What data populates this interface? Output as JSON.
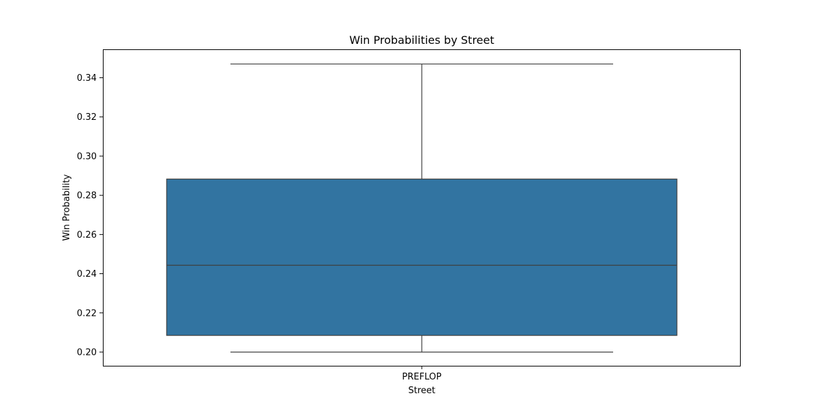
{
  "chart_data": {
    "type": "box",
    "title": "Win Probabilities by Street",
    "xlabel": "Street",
    "ylabel": "Win Probability",
    "categories": [
      "PREFLOP"
    ],
    "boxes": [
      {
        "category": "PREFLOP",
        "whisker_low": 0.2,
        "q1": 0.2085,
        "median": 0.2443,
        "q3": 0.2883,
        "whisker_high": 0.347
      }
    ],
    "ylim": [
      0.193,
      0.3545
    ],
    "yticks": [
      0.2,
      0.22,
      0.24,
      0.26,
      0.28,
      0.3,
      0.32,
      0.34
    ],
    "ytick_labels": [
      "0.20",
      "0.22",
      "0.24",
      "0.26",
      "0.28",
      "0.30",
      "0.32",
      "0.34"
    ],
    "grid": false,
    "colors": {
      "box_fill": "#3274a1",
      "line": "#3f3f3f",
      "axes": "#000000"
    }
  }
}
